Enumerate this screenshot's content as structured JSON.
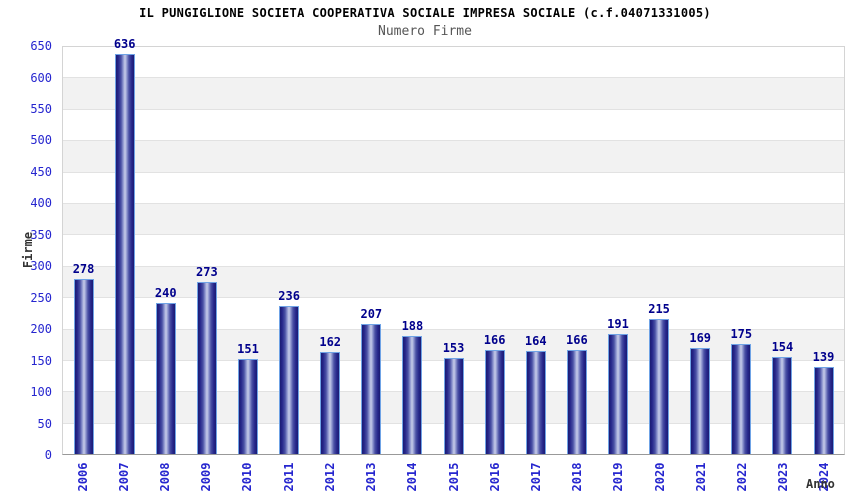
{
  "header": {
    "title": "IL PUNGIGLIONE SOCIETA COOPERATIVA SOCIALE IMPRESA SOCIALE (c.f.04071331005)",
    "subtitle": "Numero Firme"
  },
  "axes": {
    "y_label": "Firme",
    "x_label": "Anno"
  },
  "colors": {
    "value_label": "#00008c",
    "tick_label": "#2626cf",
    "bar_edge": "#1b1b72",
    "bar_highlight": "#c7cce9",
    "bar_border": "#6fa3e6",
    "band_gray": "#f2f2f2",
    "gridline": "#e2e2e2"
  },
  "chart_data": {
    "type": "bar",
    "title": "IL PUNGIGLIONE SOCIETA COOPERATIVA SOCIALE IMPRESA SOCIALE (c.f.04071331005)",
    "subtitle": "Numero Firme",
    "xlabel": "Anno",
    "ylabel": "Firme",
    "categories": [
      "2006",
      "2007",
      "2008",
      "2009",
      "2010",
      "2011",
      "2012",
      "2013",
      "2014",
      "2015",
      "2016",
      "2017",
      "2018",
      "2019",
      "2020",
      "2021",
      "2022",
      "2023",
      "2024"
    ],
    "values": [
      278,
      636,
      240,
      273,
      151,
      236,
      162,
      207,
      188,
      153,
      166,
      164,
      166,
      191,
      215,
      169,
      175,
      154,
      139
    ],
    "ylim": [
      0,
      650
    ],
    "ytick_step": 50,
    "grid": "horizontal-bands-alternating",
    "legend": "none",
    "value_labels": "above-bars"
  }
}
